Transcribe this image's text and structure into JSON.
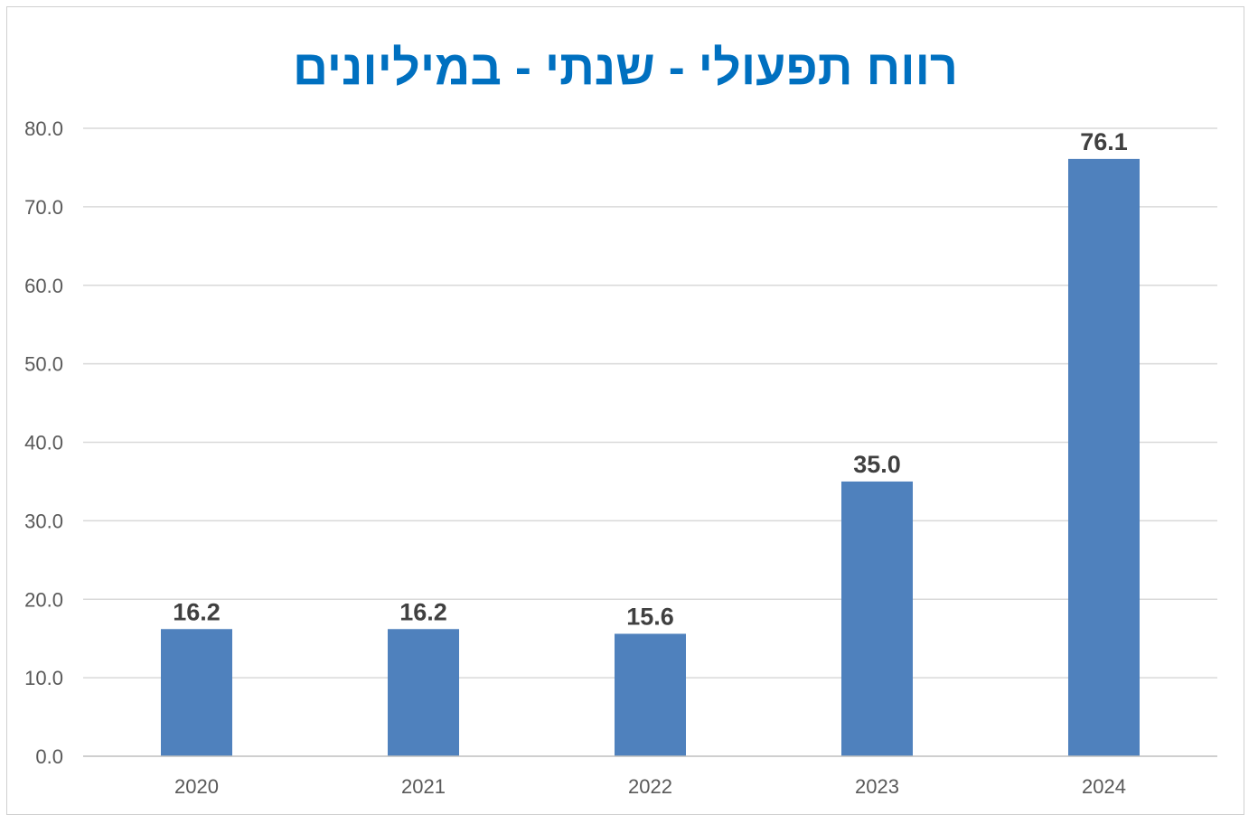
{
  "chart_data": {
    "type": "bar",
    "title": "רווח תפעולי - שנתי - במיליונים",
    "xlabel": "",
    "ylabel": "",
    "categories": [
      "2020",
      "2021",
      "2022",
      "2023",
      "2024"
    ],
    "values": [
      16.2,
      16.2,
      15.6,
      35.0,
      76.1
    ],
    "data_labels": [
      "16.2",
      "16.2",
      "15.6",
      "35.0",
      "76.1"
    ],
    "ylim": [
      0,
      80
    ],
    "yticks": [
      "0.0",
      "10.0",
      "20.0",
      "30.0",
      "40.0",
      "50.0",
      "60.0",
      "70.0",
      "80.0"
    ],
    "grid": true,
    "legend": "none"
  },
  "colors": {
    "bar": "#4f81bd",
    "title": "#0070c0",
    "grid": "#d9d9d9",
    "axis": "#bfbfbf",
    "tick_text": "#595959",
    "data_label": "#404040"
  }
}
